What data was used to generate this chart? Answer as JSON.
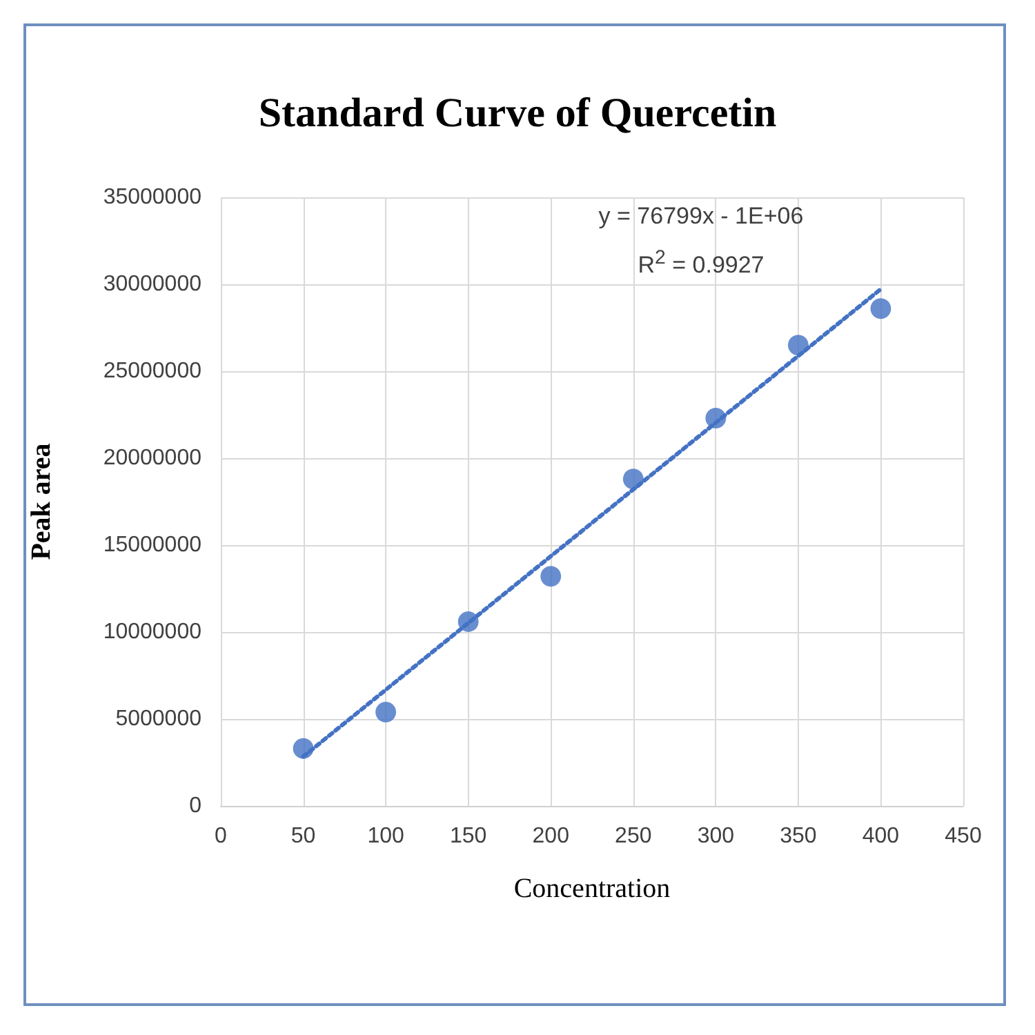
{
  "chart_data": {
    "type": "scatter",
    "title": "Standard Curve of Quercetin",
    "xlabel": "Concentration",
    "ylabel": "Peak area",
    "x": [
      50,
      100,
      150,
      200,
      250,
      300,
      350,
      400
    ],
    "series": [
      {
        "type": "scatter",
        "color": "#4472c4",
        "marker": "circle",
        "values": [
          3300000,
          5400000,
          10600000,
          13200000,
          18800000,
          22300000,
          26500000,
          28600000
        ]
      },
      {
        "type": "line",
        "color": "#4472c4",
        "line_style": "dotted",
        "marker": "none",
        "x": [
          50,
          400
        ],
        "values": [
          2840000,
          29720000
        ]
      }
    ],
    "annotations": [
      "y = 76799x - 1E+06",
      "R$^{2}$ = 0.9927"
    ],
    "xlim": [
      0,
      450
    ],
    "xticks": [
      0,
      50,
      100,
      150,
      200,
      250,
      300,
      350,
      400,
      450
    ],
    "ylim": [
      0,
      35000000
    ],
    "yticks": [
      0,
      5000000,
      10000000,
      15000000,
      20000000,
      25000000,
      30000000,
      35000000
    ],
    "grid": true
  }
}
